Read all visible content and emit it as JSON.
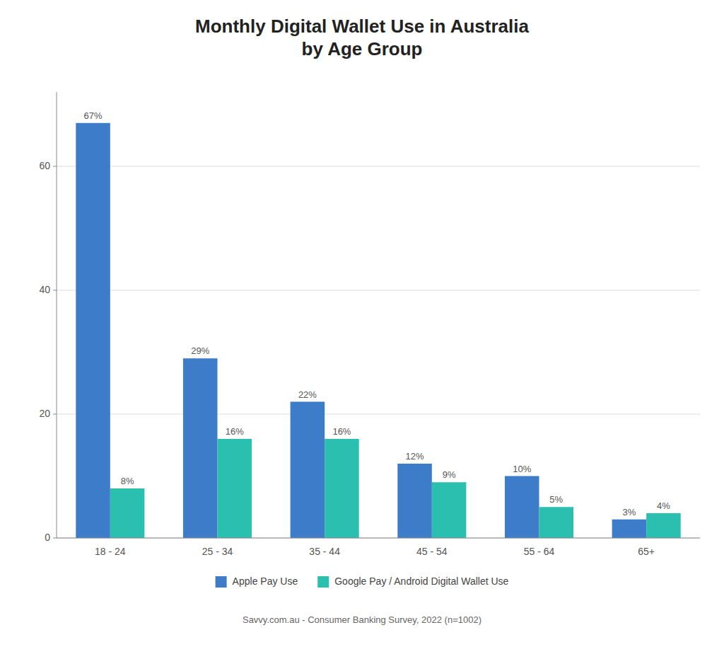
{
  "chart_data": {
    "type": "bar",
    "title": "Monthly Digital Wallet Use in Australia\nby Age Group",
    "annotations": [
      "Savvy.com.au - Consumer Banking Survey, 2022 (n=1002)"
    ],
    "categories": [
      "18 - 24",
      "25 - 34",
      "35 - 44",
      "45 - 54",
      "55 - 64",
      "65+"
    ],
    "series": [
      {
        "name": "Apple Pay Use",
        "color": "#3d7cc9",
        "values": [
          67,
          29,
          22,
          12,
          10,
          3
        ],
        "value_labels": [
          "67%",
          "29%",
          "22%",
          "12%",
          "10%",
          "3%"
        ]
      },
      {
        "name": "Google Pay / Android Digital Wallet Use",
        "color": "#2bbfb0",
        "values": [
          8,
          16,
          16,
          9,
          5,
          4
        ],
        "value_labels": [
          "8%",
          "16%",
          "16%",
          "9%",
          "5%",
          "4%"
        ]
      }
    ],
    "ylim": [
      0,
      72
    ],
    "yticks": [
      0,
      20,
      40,
      60
    ],
    "grid": true,
    "legend": "bottom",
    "data_labels": true
  }
}
